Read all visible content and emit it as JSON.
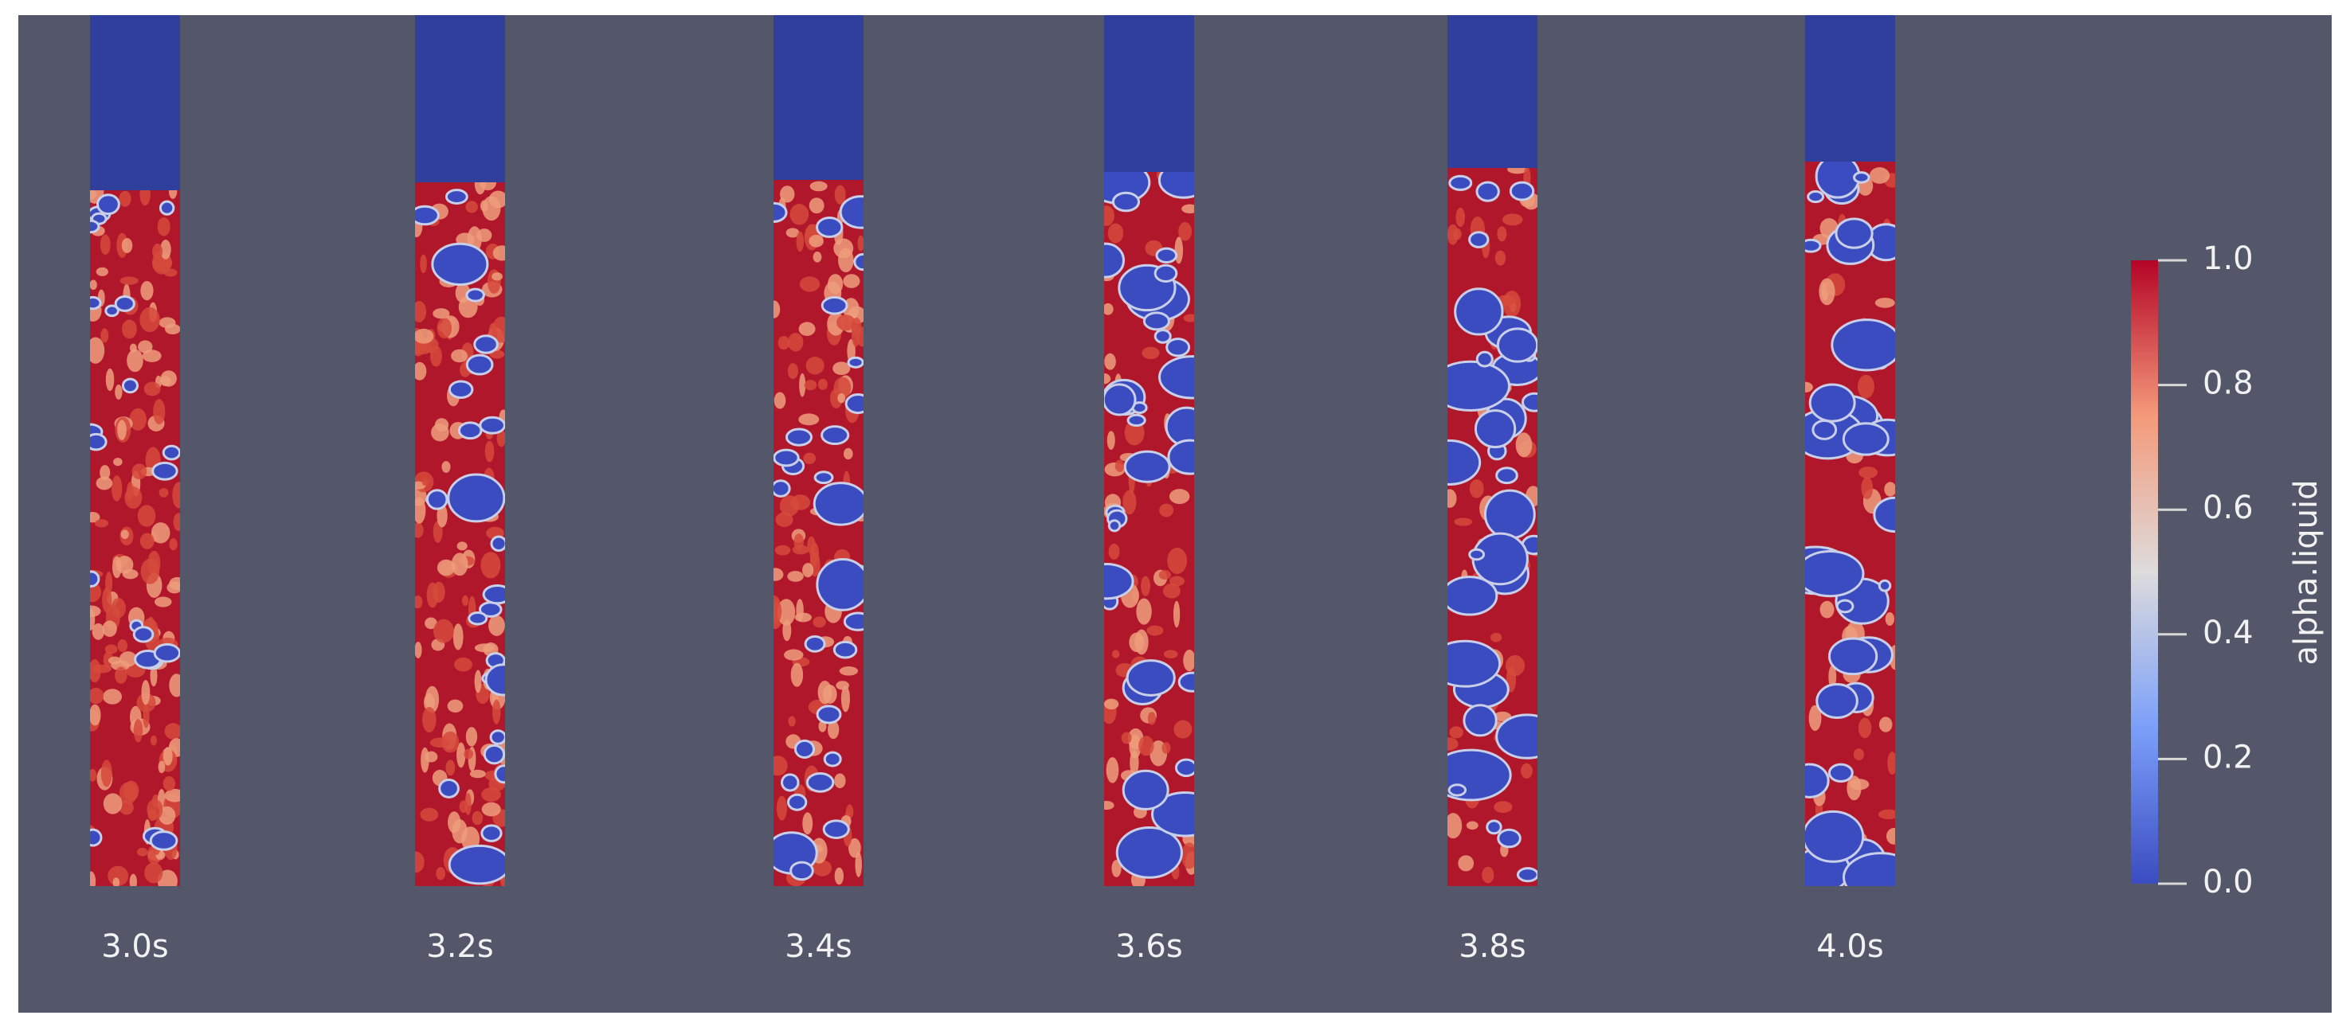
{
  "panels": [
    {
      "label": "3.0s"
    },
    {
      "label": "3.2s"
    },
    {
      "label": "3.4s"
    },
    {
      "label": "3.6s"
    },
    {
      "label": "3.8s"
    },
    {
      "label": "4.0s"
    }
  ],
  "colorbar": {
    "title": "alpha.liquid",
    "ticks": [
      {
        "value": 0,
        "label": "0.0"
      },
      {
        "value": 0.2,
        "label": "0.2"
      },
      {
        "value": 0.4,
        "label": "0.4"
      },
      {
        "value": 0.6,
        "label": "0.6"
      },
      {
        "value": 0.8,
        "label": "0.8"
      },
      {
        "value": 1,
        "label": "1.0"
      }
    ]
  }
}
